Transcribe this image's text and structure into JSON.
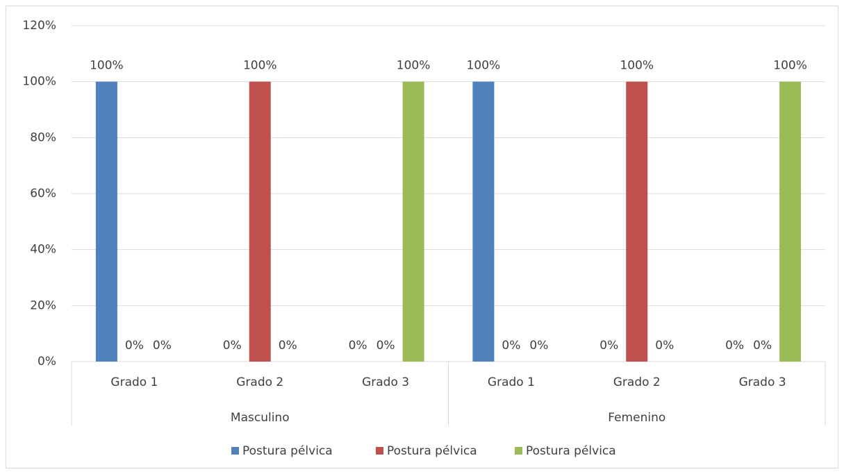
{
  "chart_data": {
    "type": "bar",
    "categories": [
      "Grado 1",
      "Grado 2",
      "Grado 3",
      "Grado 1",
      "Grado 2",
      "Grado 3"
    ],
    "category_groups": [
      "Masculino",
      "Femenino"
    ],
    "series": [
      {
        "name": "Postura pélvica",
        "color": "#4f81bd",
        "values": [
          100,
          0,
          0,
          100,
          0,
          0
        ],
        "value_labels": [
          "100%",
          "0%",
          "0%",
          "100%",
          "0%",
          "0%"
        ]
      },
      {
        "name": "Postura pélvica",
        "color": "#c0504d",
        "values": [
          0,
          100,
          0,
          0,
          100,
          0
        ],
        "value_labels": [
          "0%",
          "100%",
          "0%",
          "0%",
          "100%",
          "0%"
        ]
      },
      {
        "name": "Postura pélvica",
        "color": "#9bbb59",
        "values": [
          0,
          0,
          100,
          0,
          0,
          100
        ],
        "value_labels": [
          "0%",
          "0%",
          "100%",
          "0%",
          "0%",
          "100%"
        ]
      }
    ],
    "ylim": [
      0,
      120
    ],
    "yticks": [
      {
        "value": 0,
        "label": "0%"
      },
      {
        "value": 20,
        "label": "20%"
      },
      {
        "value": 40,
        "label": "40%"
      },
      {
        "value": 60,
        "label": "60%"
      },
      {
        "value": 80,
        "label": "80%"
      },
      {
        "value": 100,
        "label": "100%"
      },
      {
        "value": 120,
        "label": "120%"
      }
    ],
    "grid": true,
    "legend": "bottom"
  }
}
